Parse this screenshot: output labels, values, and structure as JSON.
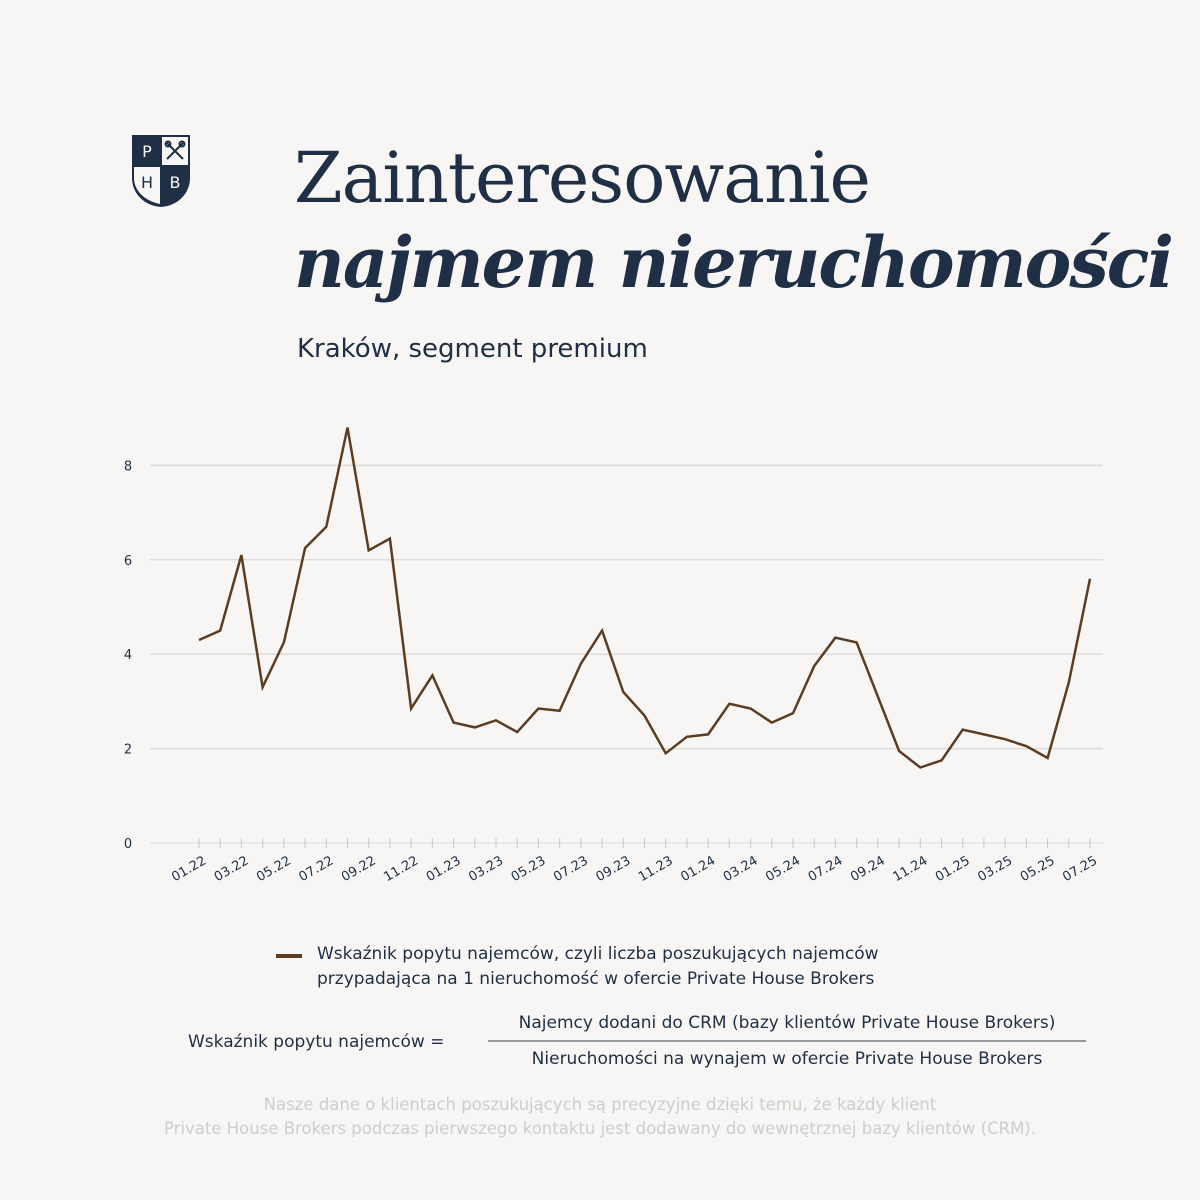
{
  "logo": {
    "letters": [
      "P",
      "H",
      "B"
    ],
    "icon": "crossed-keys-icon"
  },
  "title": {
    "line1": "Zainteresowanie",
    "line2": "najmem nieruchomości"
  },
  "subtitle": "Kraków, segment premium",
  "colors": {
    "background": "#f7f6f4",
    "navy": "#1f2f45",
    "series": "#5c3d22",
    "grid": "#dcdcdc",
    "footnote": "#cfcdcb"
  },
  "chart_data": {
    "type": "line",
    "ylim": [
      0,
      8.9
    ],
    "yticks": [
      0,
      2,
      4,
      6,
      8
    ],
    "grid": true,
    "x_tick_labels": [
      "01.22",
      "03.22",
      "05.22",
      "07.22",
      "09.22",
      "11.22",
      "01.23",
      "03.23",
      "05.23",
      "07.23",
      "09.23",
      "11.23",
      "01.24",
      "03.24",
      "05.24",
      "07.24",
      "09.24",
      "11.24",
      "01.25",
      "03.25",
      "05.25",
      "07.25"
    ],
    "x": [
      "01.22",
      "02.22",
      "03.22",
      "04.22",
      "05.22",
      "06.22",
      "07.22",
      "08.22",
      "09.22",
      "10.22",
      "11.22",
      "12.22",
      "01.23",
      "02.23",
      "03.23",
      "04.23",
      "05.23",
      "06.23",
      "07.23",
      "08.23",
      "09.23",
      "10.23",
      "11.23",
      "12.23",
      "01.24",
      "02.24",
      "03.24",
      "04.24",
      "05.24",
      "06.24",
      "07.24",
      "08.24",
      "09.24",
      "10.24",
      "11.24",
      "12.24",
      "01.25",
      "02.25",
      "03.25",
      "04.25",
      "05.25",
      "06.25",
      "07.25"
    ],
    "series": [
      {
        "name": "Wskaźnik popytu najemców, czyli liczba poszukujących najemców przypadająca na 1 nieruchomość w ofercie Private House Brokers",
        "color": "#5c3d22",
        "values": [
          4.3,
          4.5,
          6.1,
          3.3,
          4.25,
          6.25,
          6.7,
          8.8,
          6.2,
          6.45,
          2.85,
          3.55,
          2.55,
          2.45,
          2.6,
          2.35,
          2.85,
          2.8,
          3.8,
          4.5,
          3.2,
          2.7,
          1.9,
          2.25,
          2.3,
          2.95,
          2.85,
          2.55,
          2.75,
          3.75,
          4.35,
          4.25,
          3.1,
          1.95,
          1.6,
          1.75,
          2.4,
          2.3,
          2.2,
          2.05,
          1.8,
          3.4,
          5.6
        ]
      }
    ]
  },
  "legend": {
    "label": "Wskaźnik popytu najemców, czyli liczba poszukujących najemców przypadająca na 1 nieruchomość w ofercie Private House Brokers"
  },
  "formula": {
    "lhs": "Wskaźnik popytu najemców =",
    "numerator": "Najemcy dodani do CRM (bazy klientów Private House Brokers)",
    "denominator": "Nieruchomości na wynajem w ofercie Private House Brokers"
  },
  "footnote": {
    "line1": "Nasze dane o klientach poszukujących są precyzyjne dzięki temu, że każdy klient",
    "line2": "Private House Brokers podczas pierwszego kontaktu jest dodawany do wewnętrznej bazy klientów (CRM)."
  }
}
